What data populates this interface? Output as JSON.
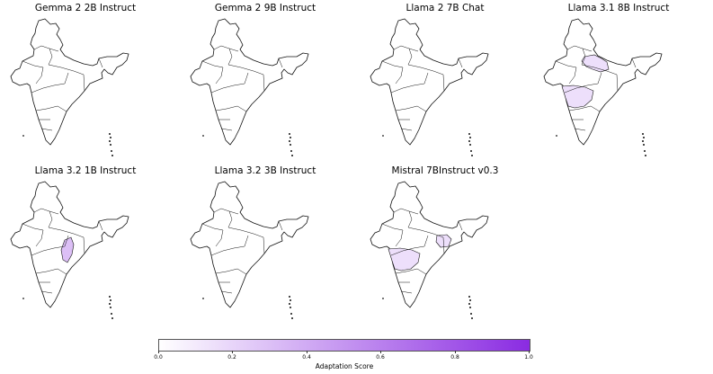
{
  "panels": [
    {
      "title": "Gemma 2 2B Instruct",
      "highlighted_regions": []
    },
    {
      "title": "Gemma 2 9B Instruct",
      "highlighted_regions": []
    },
    {
      "title": "Llama 2 7B Chat",
      "highlighted_regions": []
    },
    {
      "title": "Llama 3.1 8B Instruct",
      "highlighted_regions": [
        {
          "region": "Uttar Pradesh",
          "score": 0.15
        },
        {
          "region": "Maharashtra",
          "score": 0.15
        }
      ]
    },
    {
      "title": "Llama 3.2 1B Instruct",
      "highlighted_regions": [
        {
          "region": "Chhattisgarh",
          "score": 0.3
        }
      ]
    },
    {
      "title": "Llama 3.2 3B Instruct",
      "highlighted_regions": []
    },
    {
      "title": "Mistral 7BInstruct v0.3",
      "highlighted_regions": [
        {
          "region": "Jharkhand",
          "score": 0.15
        },
        {
          "region": "Maharashtra",
          "score": 0.15
        }
      ]
    }
  ],
  "colorbar": {
    "label": "Adaptation Score",
    "ticks": [
      "0.0",
      "0.2",
      "0.4",
      "0.6",
      "0.8",
      "1.0"
    ],
    "min": 0.0,
    "max": 1.0,
    "color_low": "#ffffff",
    "color_high": "#8a2be2"
  }
}
